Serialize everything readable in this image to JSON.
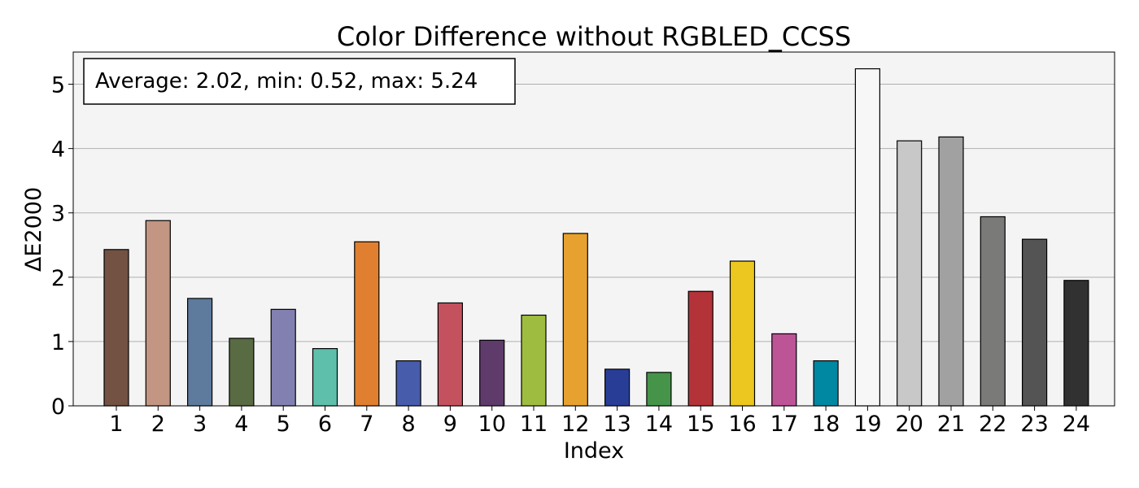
{
  "chart_data": {
    "type": "bar",
    "title": "Color Difference without RGBLED_CCSS",
    "xlabel": "Index",
    "ylabel": "ΔE2000",
    "ylim": [
      0,
      5.5
    ],
    "yticks": [
      0,
      1,
      2,
      3,
      4,
      5
    ],
    "grid": "y",
    "plot_background": "#f4f4f4",
    "bar_edge_color": "#000000",
    "annotation": "Average: 2.02, min: 0.52, max: 5.24",
    "categories": [
      "1",
      "2",
      "3",
      "4",
      "5",
      "6",
      "7",
      "8",
      "9",
      "10",
      "11",
      "12",
      "13",
      "14",
      "15",
      "16",
      "17",
      "18",
      "19",
      "20",
      "21",
      "22",
      "23",
      "24"
    ],
    "values": [
      2.43,
      2.88,
      1.67,
      1.05,
      1.5,
      0.89,
      2.55,
      0.7,
      1.6,
      1.02,
      1.41,
      2.68,
      0.57,
      0.52,
      1.78,
      2.25,
      1.12,
      0.7,
      5.24,
      4.12,
      4.18,
      2.94,
      2.59,
      1.95
    ],
    "colors": [
      "#735244",
      "#c29682",
      "#5e7a9c",
      "#596b42",
      "#8280b0",
      "#5ebfab",
      "#e07f2f",
      "#475cab",
      "#c4525e",
      "#5e3b6b",
      "#9ebd40",
      "#e6a12e",
      "#283e96",
      "#45944a",
      "#b33339",
      "#ebc71f",
      "#bd5496",
      "#0087a1",
      "#f7f7f7",
      "#c8c8c8",
      "#a1a1a1",
      "#7a7a79",
      "#545454",
      "#313131"
    ]
  }
}
